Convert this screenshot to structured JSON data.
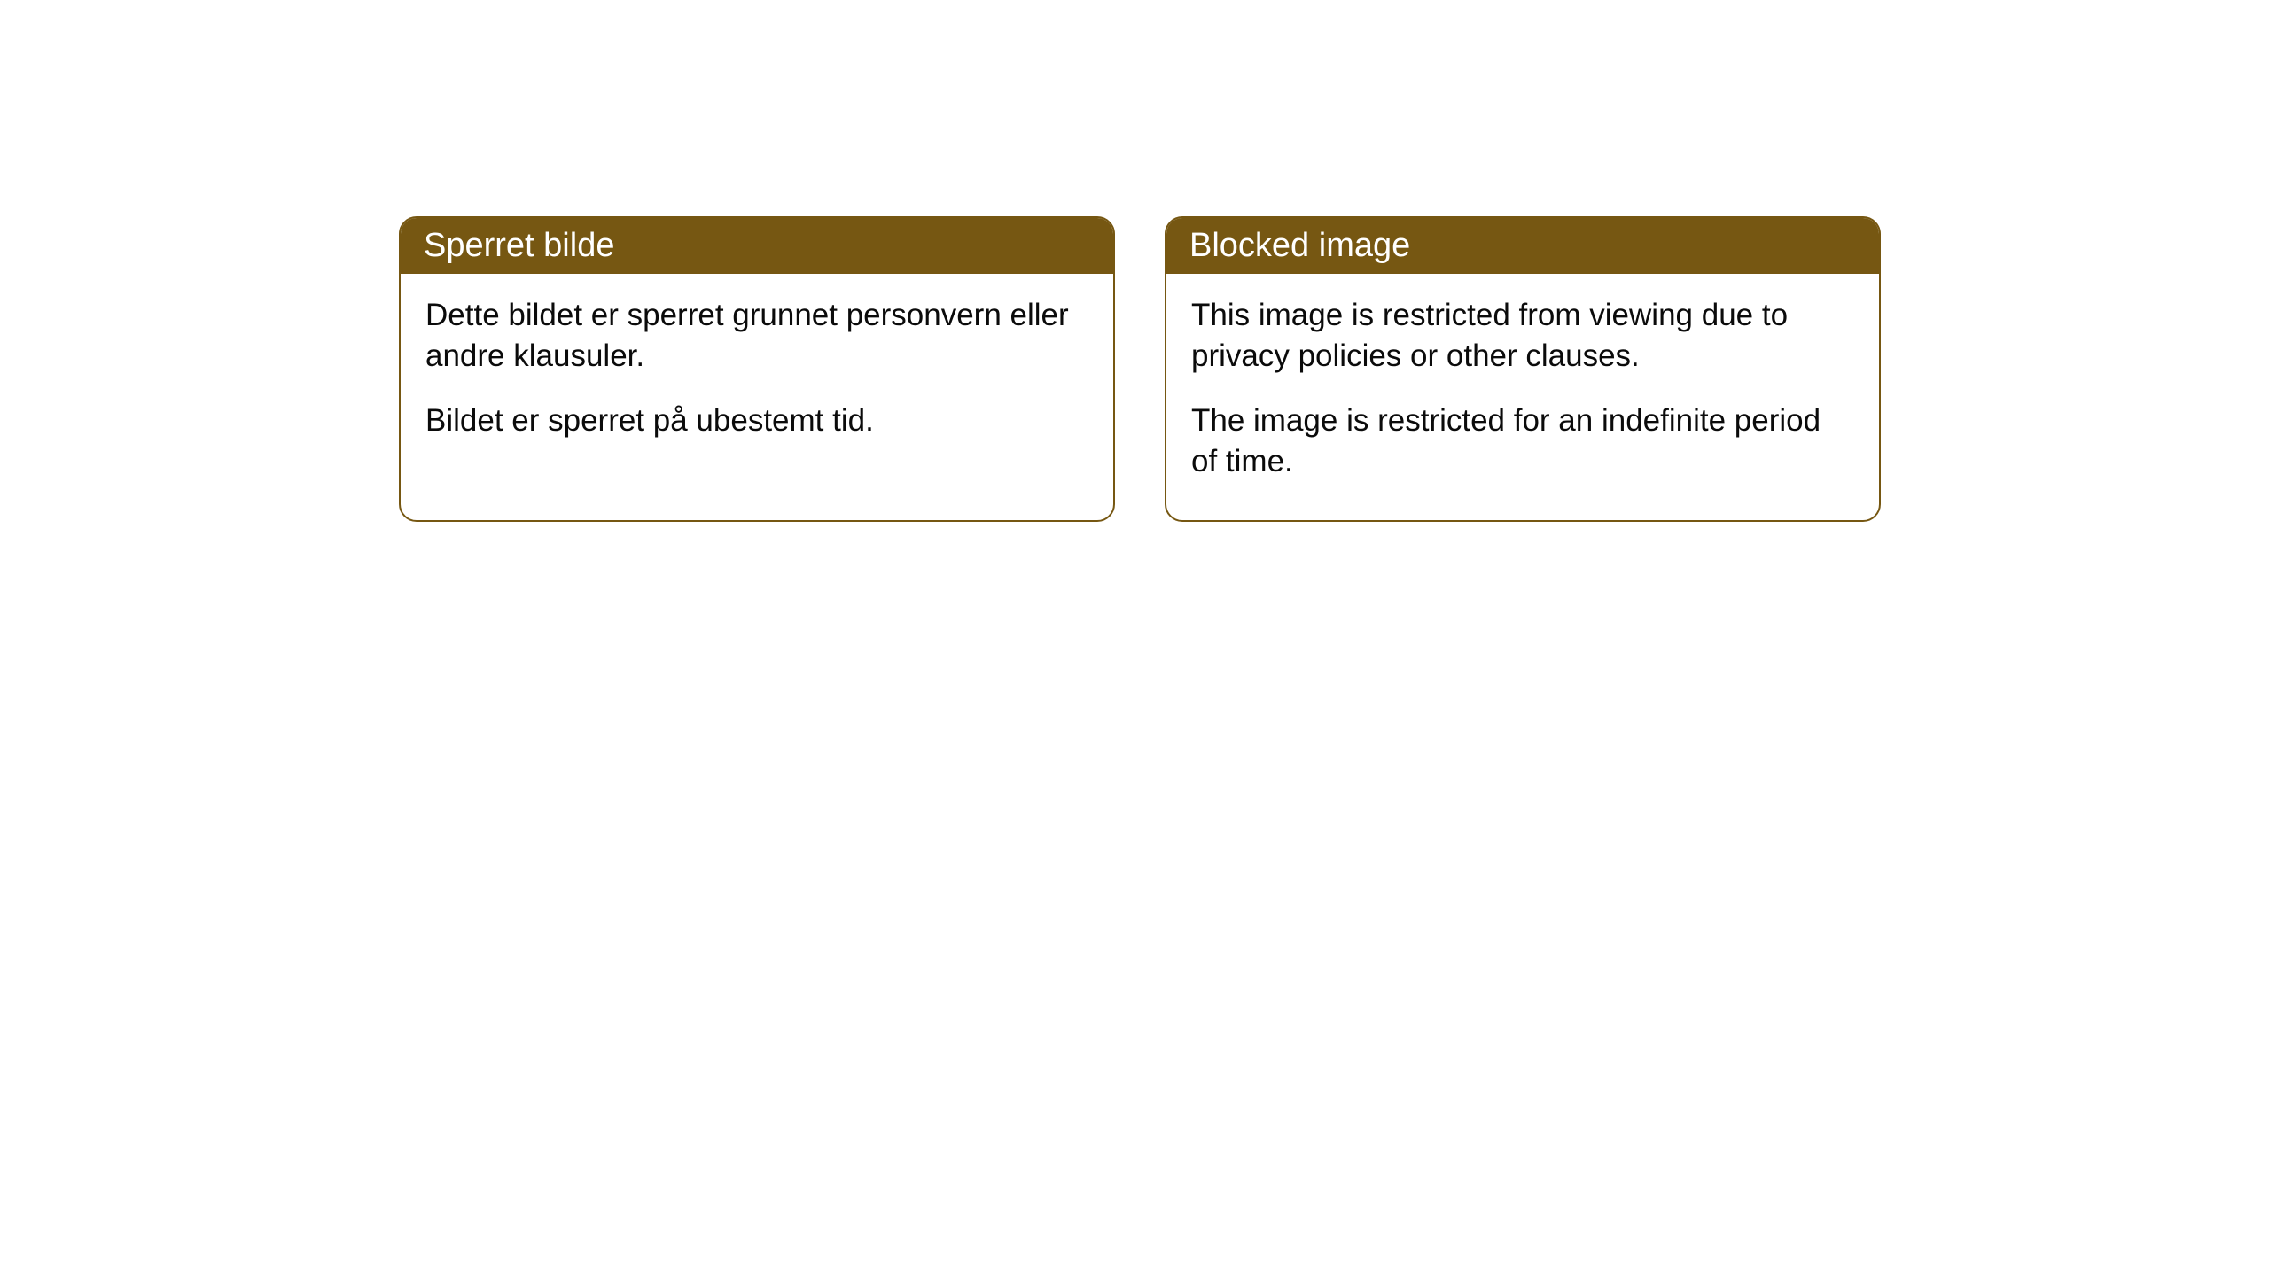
{
  "cards": [
    {
      "title": "Sperret bilde",
      "paragraph1": "Dette bildet er sperret grunnet personvern eller andre klausuler.",
      "paragraph2": "Bildet er sperret på ubestemt tid."
    },
    {
      "title": "Blocked image",
      "paragraph1": "This image is restricted from viewing due to privacy policies or other clauses.",
      "paragraph2": "The image is restricted for an indefinite period of time."
    }
  ],
  "styling": {
    "border_color": "#765712",
    "header_bg": "#765712",
    "header_text_color": "#ffffff",
    "body_text_color": "#0b0b0b",
    "background_color": "#ffffff",
    "border_radius": 20,
    "title_fontsize": 38,
    "body_fontsize": 35
  }
}
